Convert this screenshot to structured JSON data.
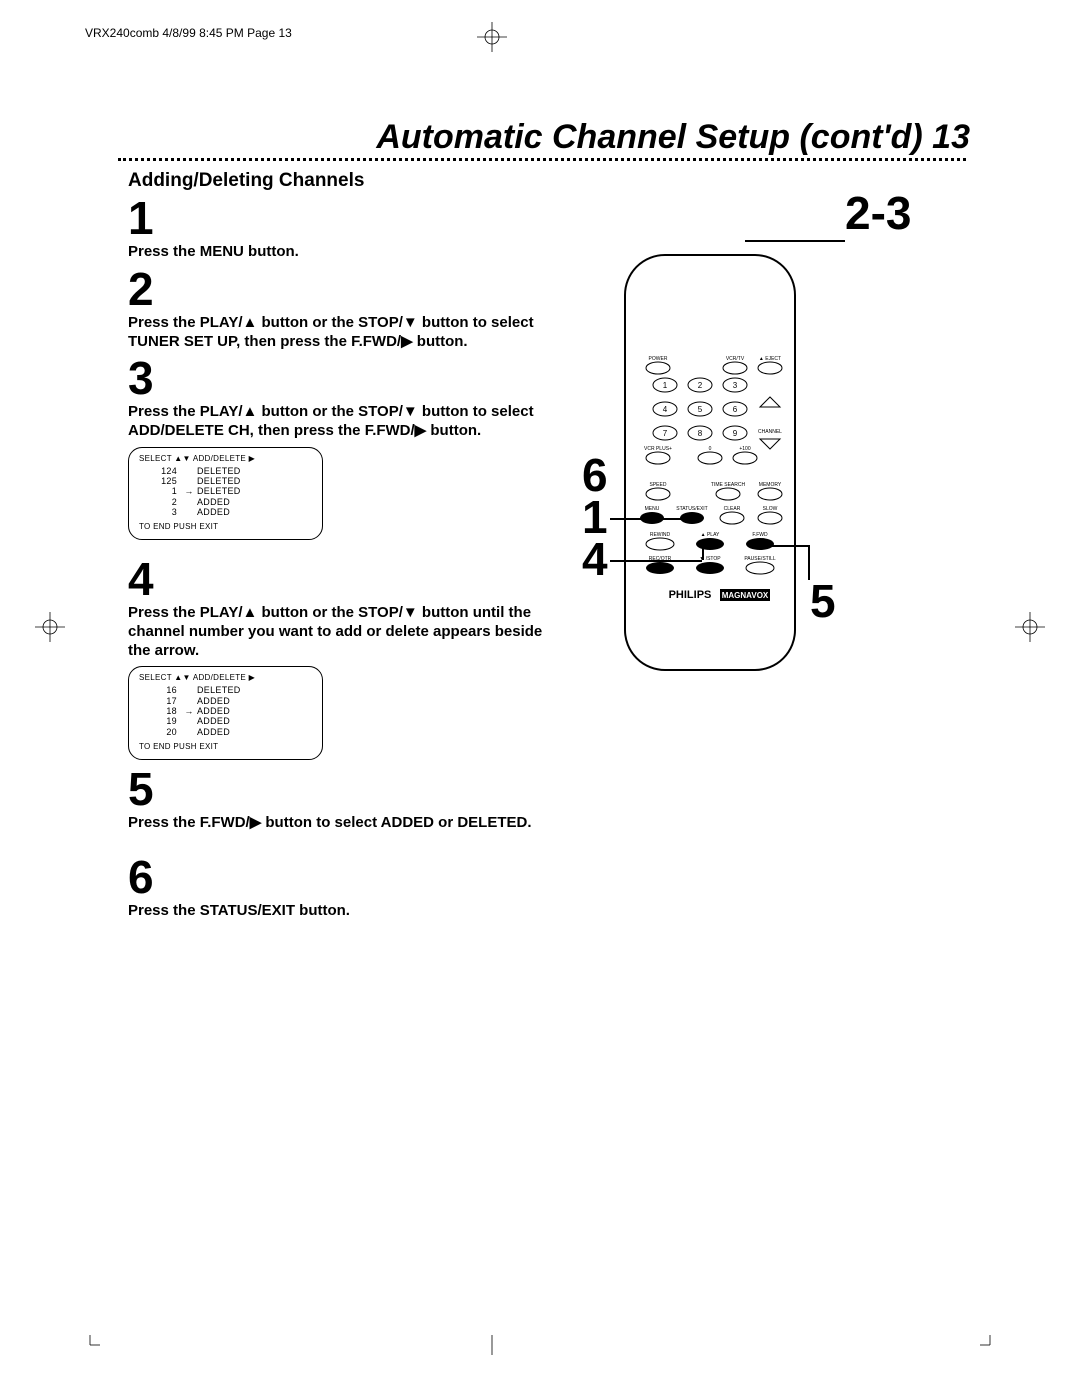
{
  "page_header": "VRX240comb  4/8/99 8:45 PM  Page 13",
  "title": "Automatic Channel Setup (cont'd)  13",
  "section_heading": "Adding/Deleting Channels",
  "steps": {
    "s1": {
      "num": "1",
      "text": "Press the MENU button."
    },
    "s2": {
      "num": "2",
      "text": "Press the PLAY/▲ button or the STOP/▼ button to select TUNER SET UP, then press the F.FWD/▶ button."
    },
    "s3": {
      "num": "3",
      "text": "Press the PLAY/▲ button or the STOP/▼ button to select ADD/DELETE CH, then press the F.FWD/▶ button."
    },
    "s4": {
      "num": "4",
      "text": "Press the PLAY/▲ button or the STOP/▼ button until the channel number you want to add or delete appears beside the arrow."
    },
    "s5": {
      "num": "5",
      "text": "Press the F.FWD/▶ button to select ADDED or DELETED."
    },
    "s6": {
      "num": "6",
      "text": "Press the STATUS/EXIT button."
    }
  },
  "osd1": {
    "header": "SELECT ▲▼ ADD/DELETE ▶",
    "rows": [
      {
        "ch": "124",
        "ptr": "",
        "stat": "DELETED"
      },
      {
        "ch": "125",
        "ptr": "",
        "stat": "DELETED"
      },
      {
        "ch": "1",
        "ptr": "→",
        "stat": "DELETED"
      },
      {
        "ch": "2",
        "ptr": "",
        "stat": "ADDED"
      },
      {
        "ch": "3",
        "ptr": "",
        "stat": "ADDED"
      }
    ],
    "footer": "TO END PUSH EXIT"
  },
  "osd2": {
    "header": "SELECT ▲▼ ADD/DELETE ▶",
    "rows": [
      {
        "ch": "16",
        "ptr": "",
        "stat": "DELETED"
      },
      {
        "ch": "17",
        "ptr": "",
        "stat": "ADDED"
      },
      {
        "ch": "18",
        "ptr": "→",
        "stat": "ADDED"
      },
      {
        "ch": "19",
        "ptr": "",
        "stat": "ADDED"
      },
      {
        "ch": "20",
        "ptr": "",
        "stat": "ADDED"
      }
    ],
    "footer": "TO END PUSH EXIT"
  },
  "callouts": {
    "c23": "2-3",
    "c6": "6",
    "c1": "1",
    "c4": "4",
    "c5": "5"
  },
  "remote": {
    "labels": {
      "power": "POWER",
      "vcrtv": "VCR/TV",
      "eject": "▲ EJECT",
      "vcrplus": "VCR PLUS+",
      "zero": "0",
      "plus100": "+100",
      "channel": "CHANNEL",
      "speed": "SPEED",
      "timesearch": "TIME SEARCH",
      "memory": "MEMORY",
      "menu": "MENU",
      "statusexit": "STATUS/EXIT",
      "clear": "CLEAR",
      "slow": "SLOW",
      "rewind": "REWIND",
      "play": "▲ PLAY",
      "ffwd": "F.FWD",
      "recotr": "REC/OTR",
      "stop": "▼ /STOP",
      "pausestill": "PAUSE/STILL",
      "brand": "PHILIPS",
      "magnavox": "MAGNAVOX",
      "nums": [
        "1",
        "2",
        "3",
        "4",
        "5",
        "6",
        "7",
        "8",
        "9"
      ]
    }
  },
  "colors": {
    "text": "#000000",
    "bg": "#ffffff"
  }
}
